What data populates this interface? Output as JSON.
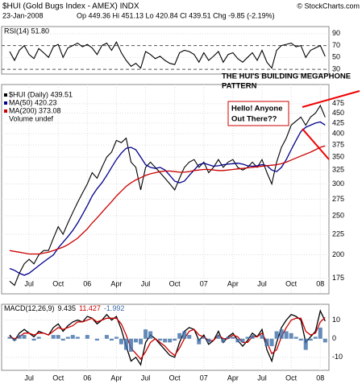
{
  "header": {
    "title": "$HUI (Gold Bugs Index - AMEX) INDX",
    "source": "© StockCharts.com",
    "date": "23-Jan-2008",
    "quote": "Op 449.36  Hi 451.13  Lo 420.84  Cl 439.51  Chg -9.85 (-2.19%)"
  },
  "chart_data": [
    {
      "type": "line",
      "title": "RSI(14) 51.80",
      "ylim": [
        22,
        102
      ],
      "yticks": [
        30,
        50,
        70,
        90
      ],
      "dashed": [
        30,
        70
      ],
      "grid": true,
      "series": [
        {
          "name": null,
          "color": "#000000",
          "values": [
            60,
            45,
            62,
            70,
            55,
            48,
            65,
            58,
            50,
            68,
            72,
            50,
            66,
            70,
            74,
            68,
            72,
            66,
            55,
            70,
            74,
            62,
            76,
            58,
            45,
            35,
            40,
            32,
            60,
            55,
            48,
            52,
            45,
            40,
            38,
            58,
            62,
            60,
            55,
            42,
            58,
            45,
            52,
            60,
            42,
            55,
            58,
            48,
            42,
            50,
            58,
            45,
            62,
            42,
            32,
            62,
            70,
            72,
            74,
            68,
            70,
            50,
            62,
            66,
            70,
            51.8
          ]
        }
      ]
    },
    {
      "type": "line",
      "log": true,
      "ylim": [
        160,
        530
      ],
      "yticks": [
        175,
        200,
        225,
        250,
        275,
        300,
        325,
        350,
        375,
        400,
        425,
        450,
        475
      ],
      "grid": true,
      "categories": [
        null,
        null,
        null,
        null,
        "Jul",
        null,
        null,
        null,
        null,
        null,
        "Oct",
        null,
        null,
        null,
        null,
        null,
        "06",
        null,
        null,
        null,
        null,
        null,
        "Apr",
        null,
        null,
        null,
        null,
        null,
        "Jul",
        null,
        null,
        null,
        null,
        null,
        "Oct",
        null,
        null,
        null,
        null,
        null,
        "07",
        null,
        null,
        null,
        null,
        null,
        "Apr",
        null,
        null,
        null,
        null,
        null,
        "Jul",
        null,
        null,
        null,
        null,
        null,
        "Oct",
        null,
        null,
        null,
        null,
        null,
        "08",
        null
      ],
      "annotations": [
        "THE HUI'S BUILDING MEGAPHONE",
        "PATTERN",
        "Hello! Anyone",
        "Out There??"
      ],
      "legend_extra": "Volume undef",
      "series": [
        {
          "name": "$HUI (Daily) 439.51",
          "color": "#000000",
          "values": [
            172,
            168,
            180,
            190,
            195,
            190,
            200,
            205,
            205,
            220,
            235,
            225,
            240,
            255,
            270,
            285,
            300,
            320,
            310,
            330,
            350,
            360,
            385,
            380,
            390,
            340,
            330,
            290,
            330,
            340,
            330,
            320,
            310,
            300,
            290,
            310,
            330,
            340,
            345,
            330,
            340,
            320,
            330,
            345,
            330,
            340,
            345,
            330,
            325,
            330,
            340,
            330,
            345,
            320,
            300,
            340,
            370,
            390,
            420,
            430,
            440,
            420,
            440,
            450,
            470,
            439.51
          ]
        },
        {
          "name": "MA(50) 420.23",
          "color": "#00008b",
          "values": [
            185,
            183,
            180,
            178,
            180,
            184,
            188,
            192,
            196,
            200,
            208,
            215,
            222,
            230,
            240,
            252,
            265,
            280,
            292,
            302,
            315,
            330,
            345,
            358,
            368,
            370,
            365,
            350,
            335,
            330,
            328,
            330,
            325,
            315,
            305,
            302,
            305,
            315,
            325,
            335,
            338,
            335,
            332,
            333,
            335,
            336,
            337,
            338,
            336,
            333,
            332,
            333,
            335,
            333,
            325,
            322,
            330,
            345,
            365,
            385,
            405,
            415,
            420,
            425,
            428,
            420.23
          ]
        },
        {
          "name": "MA(200) 373.08",
          "color": "#cc0000",
          "values": [
            205,
            204,
            203,
            202,
            201,
            201,
            201,
            202,
            203,
            205,
            207,
            209,
            212,
            216,
            220,
            226,
            232,
            240,
            247,
            255,
            263,
            271,
            280,
            288,
            296,
            302,
            307,
            311,
            315,
            318,
            320,
            322,
            323,
            323,
            322,
            321,
            321,
            322,
            324,
            325,
            326,
            326,
            325,
            324,
            324,
            325,
            326,
            327,
            328,
            329,
            330,
            331,
            332,
            333,
            334,
            335,
            337,
            340,
            344,
            348,
            352,
            356,
            360,
            365,
            370,
            373.08
          ]
        }
      ]
    },
    {
      "type": "line",
      "ylim": [
        -17,
        18.5
      ],
      "yticks": [
        -10,
        0,
        10
      ],
      "grid": true,
      "categories": [
        null,
        null,
        null,
        null,
        "Jul",
        null,
        null,
        null,
        null,
        null,
        "Oct",
        null,
        null,
        null,
        null,
        null,
        "06",
        null,
        null,
        null,
        null,
        null,
        "Apr",
        null,
        null,
        null,
        null,
        null,
        "Jul",
        null,
        null,
        null,
        null,
        null,
        "Oct",
        null,
        null,
        null,
        null,
        null,
        "07",
        null,
        null,
        null,
        null,
        null,
        "Apr",
        null,
        null,
        null,
        null,
        null,
        "Jul",
        null,
        null,
        null,
        null,
        null,
        "Oct",
        null,
        null,
        null,
        null,
        null,
        "08",
        null
      ],
      "title": "MACD(12,26,9)",
      "series": [
        {
          "name": "9.435",
          "color": "#000000",
          "values": [
            2,
            -1,
            3,
            5,
            3,
            1,
            4,
            3,
            2,
            6,
            8,
            4,
            7,
            9,
            10,
            9,
            12,
            11,
            8,
            10,
            13,
            10,
            12,
            5,
            -4,
            -12,
            -10,
            -14,
            -2,
            2,
            0,
            -3,
            -6,
            -9,
            -10,
            -2,
            4,
            6,
            5,
            -1,
            2,
            -3,
            -1,
            4,
            -2,
            1,
            3,
            -1,
            -4,
            -1,
            3,
            1,
            5,
            -6,
            -12,
            -2,
            6,
            10,
            13,
            12,
            10,
            -2,
            1,
            4,
            15,
            9.435
          ]
        },
        {
          "name": "11.427",
          "color": "#cc0000",
          "values": [
            1,
            0,
            1,
            3,
            3,
            2,
            3,
            3,
            2,
            4,
            6,
            5,
            6,
            7,
            9,
            9,
            10,
            11,
            9,
            10,
            11,
            11,
            11,
            8,
            2,
            -5,
            -8,
            -11,
            -7,
            -2,
            0,
            -2,
            -4,
            -7,
            -9,
            -5,
            0,
            4,
            5,
            2,
            1,
            -1,
            -1,
            2,
            0,
            0,
            2,
            1,
            -2,
            -2,
            1,
            1,
            3,
            -2,
            -8,
            -6,
            1,
            6,
            10,
            11,
            11,
            4,
            2,
            3,
            9,
            11.427
          ]
        },
        {
          "name": "-1.992",
          "color": "#3d6ea8",
          "type": "bar",
          "values": [
            1,
            -1,
            2,
            2,
            0,
            -1,
            1,
            0,
            0,
            2,
            2,
            -1,
            1,
            2,
            1,
            0,
            2,
            0,
            -1,
            0,
            2,
            -1,
            1,
            -3,
            -6,
            -7,
            -2,
            -3,
            5,
            4,
            0,
            -1,
            -2,
            -2,
            -1,
            3,
            4,
            2,
            0,
            -3,
            1,
            -2,
            0,
            2,
            -2,
            1,
            1,
            -2,
            -2,
            1,
            2,
            0,
            2,
            -4,
            -4,
            4,
            5,
            4,
            3,
            1,
            -1,
            -6,
            -1,
            1,
            6,
            -1.992
          ]
        }
      ]
    }
  ]
}
